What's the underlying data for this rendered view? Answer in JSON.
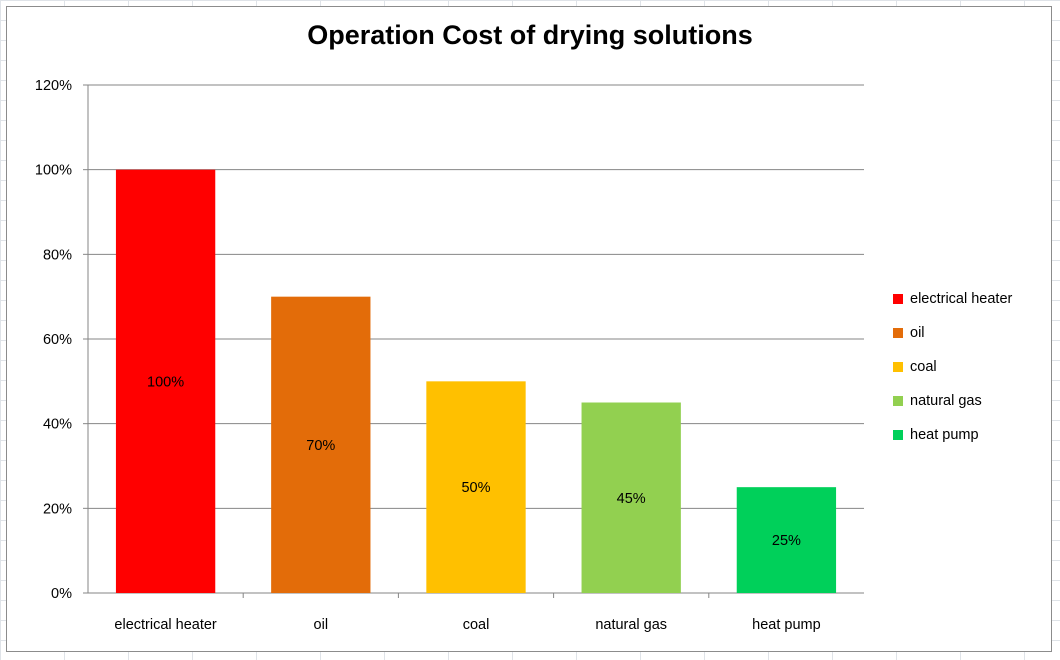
{
  "chart_data": {
    "type": "bar",
    "title": "Operation Cost of drying solutions",
    "categories": [
      "electrical heater",
      "oil",
      "coal",
      "natural gas",
      "heat pump"
    ],
    "values": [
      100,
      70,
      50,
      45,
      25
    ],
    "data_labels": [
      "100%",
      "70%",
      "50%",
      "45%",
      "25%"
    ],
    "colors": [
      "#ff0000",
      "#e36c09",
      "#ffc000",
      "#92d050",
      "#00d05a"
    ],
    "ylim": [
      0,
      120
    ],
    "yticks": [
      "0%",
      "20%",
      "40%",
      "60%",
      "80%",
      "100%",
      "120%"
    ],
    "ytick_values": [
      0,
      20,
      40,
      60,
      80,
      100,
      120
    ],
    "grid": true,
    "legend_position": "right",
    "legend": [
      "electrical heater",
      "oil",
      "coal",
      "natural gas",
      "heat pump"
    ],
    "xlabel": "",
    "ylabel": ""
  }
}
